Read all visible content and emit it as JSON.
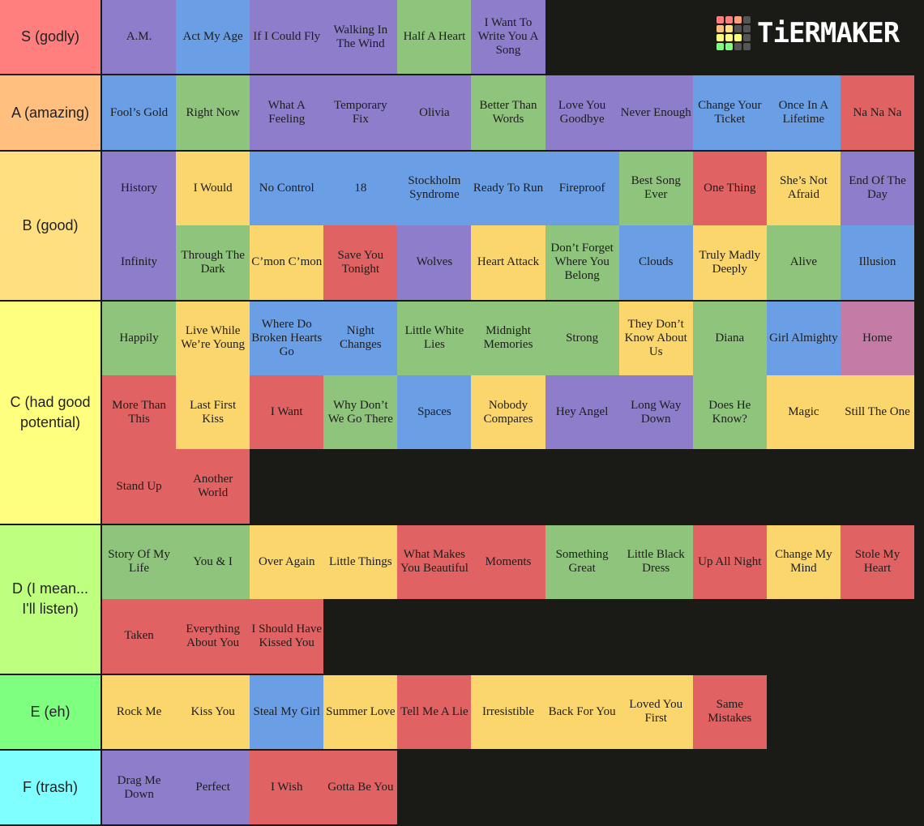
{
  "logo": "TiERMAKER",
  "tiers": [
    {
      "label": "S (godly)",
      "color": "#ff7f7f",
      "items": [
        {
          "title": "A.M.",
          "color": "#8d7dca"
        },
        {
          "title": "Act My Age",
          "color": "#6a9fe6"
        },
        {
          "title": "If I Could Fly",
          "color": "#8d7dca"
        },
        {
          "title": "Walking In The Wind",
          "color": "#8d7dca"
        },
        {
          "title": "Half A Heart",
          "color": "#8fc47c"
        },
        {
          "title": "I Want To Write You A Song",
          "color": "#8d7dca"
        }
      ]
    },
    {
      "label": "A (amazing)",
      "color": "#ffbf7f",
      "items": [
        {
          "title": "Fool’s Gold",
          "color": "#6a9fe6"
        },
        {
          "title": "Right Now",
          "color": "#8fc47c"
        },
        {
          "title": "What A Feeling",
          "color": "#8d7dca"
        },
        {
          "title": "Temporary Fix",
          "color": "#8d7dca"
        },
        {
          "title": "Olivia",
          "color": "#8d7dca"
        },
        {
          "title": "Better Than Words",
          "color": "#8fc47c"
        },
        {
          "title": "Love You Goodbye",
          "color": "#8d7dca"
        },
        {
          "title": "Never Enough",
          "color": "#8d7dca"
        },
        {
          "title": "Change Your Ticket",
          "color": "#6a9fe6"
        },
        {
          "title": "Once In A Lifetime",
          "color": "#6a9fe6"
        },
        {
          "title": "Na Na Na",
          "color": "#e06262"
        }
      ]
    },
    {
      "label": "B (good)",
      "color": "#ffdf7f",
      "items": [
        {
          "title": "History",
          "color": "#8d7dca"
        },
        {
          "title": "I Would",
          "color": "#fad66c"
        },
        {
          "title": "No Control",
          "color": "#6a9fe6"
        },
        {
          "title": "18",
          "color": "#6a9fe6"
        },
        {
          "title": "Stockholm Syndrome",
          "color": "#6a9fe6"
        },
        {
          "title": "Ready To Run",
          "color": "#6a9fe6"
        },
        {
          "title": "Fireproof",
          "color": "#6a9fe6"
        },
        {
          "title": "Best Song Ever",
          "color": "#8fc47c"
        },
        {
          "title": "One Thing",
          "color": "#e06262"
        },
        {
          "title": "She’s Not Afraid",
          "color": "#fad66c"
        },
        {
          "title": "End Of The Day",
          "color": "#8d7dca"
        },
        {
          "title": "Infinity",
          "color": "#8d7dca"
        },
        {
          "title": "Through The Dark",
          "color": "#8fc47c"
        },
        {
          "title": "C’mon C’mon",
          "color": "#fad66c"
        },
        {
          "title": "Save You Tonight",
          "color": "#e06262"
        },
        {
          "title": "Wolves",
          "color": "#8d7dca"
        },
        {
          "title": "Heart Attack",
          "color": "#fad66c"
        },
        {
          "title": "Don’t Forget Where You Belong",
          "color": "#8fc47c"
        },
        {
          "title": "Clouds",
          "color": "#6a9fe6"
        },
        {
          "title": "Truly Madly Deeply",
          "color": "#fad66c"
        },
        {
          "title": "Alive",
          "color": "#8fc47c"
        },
        {
          "title": "Illusion",
          "color": "#6a9fe6"
        }
      ]
    },
    {
      "label": "C (had good potential)",
      "color": "#ffff7f",
      "items": [
        {
          "title": "Happily",
          "color": "#8fc47c"
        },
        {
          "title": "Live While We’re Young",
          "color": "#fad66c"
        },
        {
          "title": "Where Do Broken Hearts Go",
          "color": "#6a9fe6"
        },
        {
          "title": "Night Changes",
          "color": "#6a9fe6"
        },
        {
          "title": "Little White Lies",
          "color": "#8fc47c"
        },
        {
          "title": "Midnight Memories",
          "color": "#8fc47c"
        },
        {
          "title": "Strong",
          "color": "#8fc47c"
        },
        {
          "title": "They Don’t Know About Us",
          "color": "#fad66c"
        },
        {
          "title": "Diana",
          "color": "#8fc47c"
        },
        {
          "title": "Girl Almighty",
          "color": "#6a9fe6"
        },
        {
          "title": "Home",
          "color": "#c47ca6"
        },
        {
          "title": "More Than This",
          "color": "#e06262"
        },
        {
          "title": "Last First Kiss",
          "color": "#fad66c"
        },
        {
          "title": "I Want",
          "color": "#e06262"
        },
        {
          "title": "Why Don’t We Go There",
          "color": "#8fc47c"
        },
        {
          "title": "Spaces",
          "color": "#6a9fe6"
        },
        {
          "title": "Nobody Compares",
          "color": "#fad66c"
        },
        {
          "title": "Hey Angel",
          "color": "#8d7dca"
        },
        {
          "title": "Long Way Down",
          "color": "#8d7dca"
        },
        {
          "title": "Does He Know?",
          "color": "#8fc47c"
        },
        {
          "title": "Magic",
          "color": "#fad66c"
        },
        {
          "title": "Still The One",
          "color": "#fad66c"
        },
        {
          "title": "Stand Up",
          "color": "#e06262"
        },
        {
          "title": "Another World",
          "color": "#e06262"
        }
      ]
    },
    {
      "label": "D (I mean... I'll listen)",
      "color": "#bfff7f",
      "items": [
        {
          "title": "Story Of My Life",
          "color": "#8fc47c"
        },
        {
          "title": "You & I",
          "color": "#8fc47c"
        },
        {
          "title": "Over Again",
          "color": "#fad66c"
        },
        {
          "title": "Little Things",
          "color": "#fad66c"
        },
        {
          "title": "What Makes You Beautiful",
          "color": "#e06262"
        },
        {
          "title": "Moments",
          "color": "#e06262"
        },
        {
          "title": "Something Great",
          "color": "#8fc47c"
        },
        {
          "title": "Little Black Dress",
          "color": "#8fc47c"
        },
        {
          "title": "Up All Night",
          "color": "#e06262"
        },
        {
          "title": "Change My Mind",
          "color": "#fad66c"
        },
        {
          "title": "Stole My Heart",
          "color": "#e06262"
        },
        {
          "title": "Taken",
          "color": "#e06262"
        },
        {
          "title": "Everything About You",
          "color": "#e06262"
        },
        {
          "title": "I Should Have Kissed You",
          "color": "#e06262"
        }
      ]
    },
    {
      "label": "E (eh)",
      "color": "#7fff7f",
      "items": [
        {
          "title": "Rock Me",
          "color": "#fad66c"
        },
        {
          "title": "Kiss You",
          "color": "#fad66c"
        },
        {
          "title": "Steal My Girl",
          "color": "#6a9fe6"
        },
        {
          "title": "Summer Love",
          "color": "#fad66c"
        },
        {
          "title": "Tell Me A Lie",
          "color": "#e06262"
        },
        {
          "title": "Irresistible",
          "color": "#fad66c"
        },
        {
          "title": "Back For You",
          "color": "#fad66c"
        },
        {
          "title": "Loved You First",
          "color": "#fad66c"
        },
        {
          "title": "Same Mistakes",
          "color": "#e06262"
        }
      ]
    },
    {
      "label": "F (trash)",
      "color": "#7fffff",
      "items": [
        {
          "title": "Drag Me Down",
          "color": "#8d7dca"
        },
        {
          "title": "Perfect",
          "color": "#8d7dca"
        },
        {
          "title": "I Wish",
          "color": "#e06262"
        },
        {
          "title": "Gotta Be You",
          "color": "#e06262"
        }
      ]
    }
  ]
}
